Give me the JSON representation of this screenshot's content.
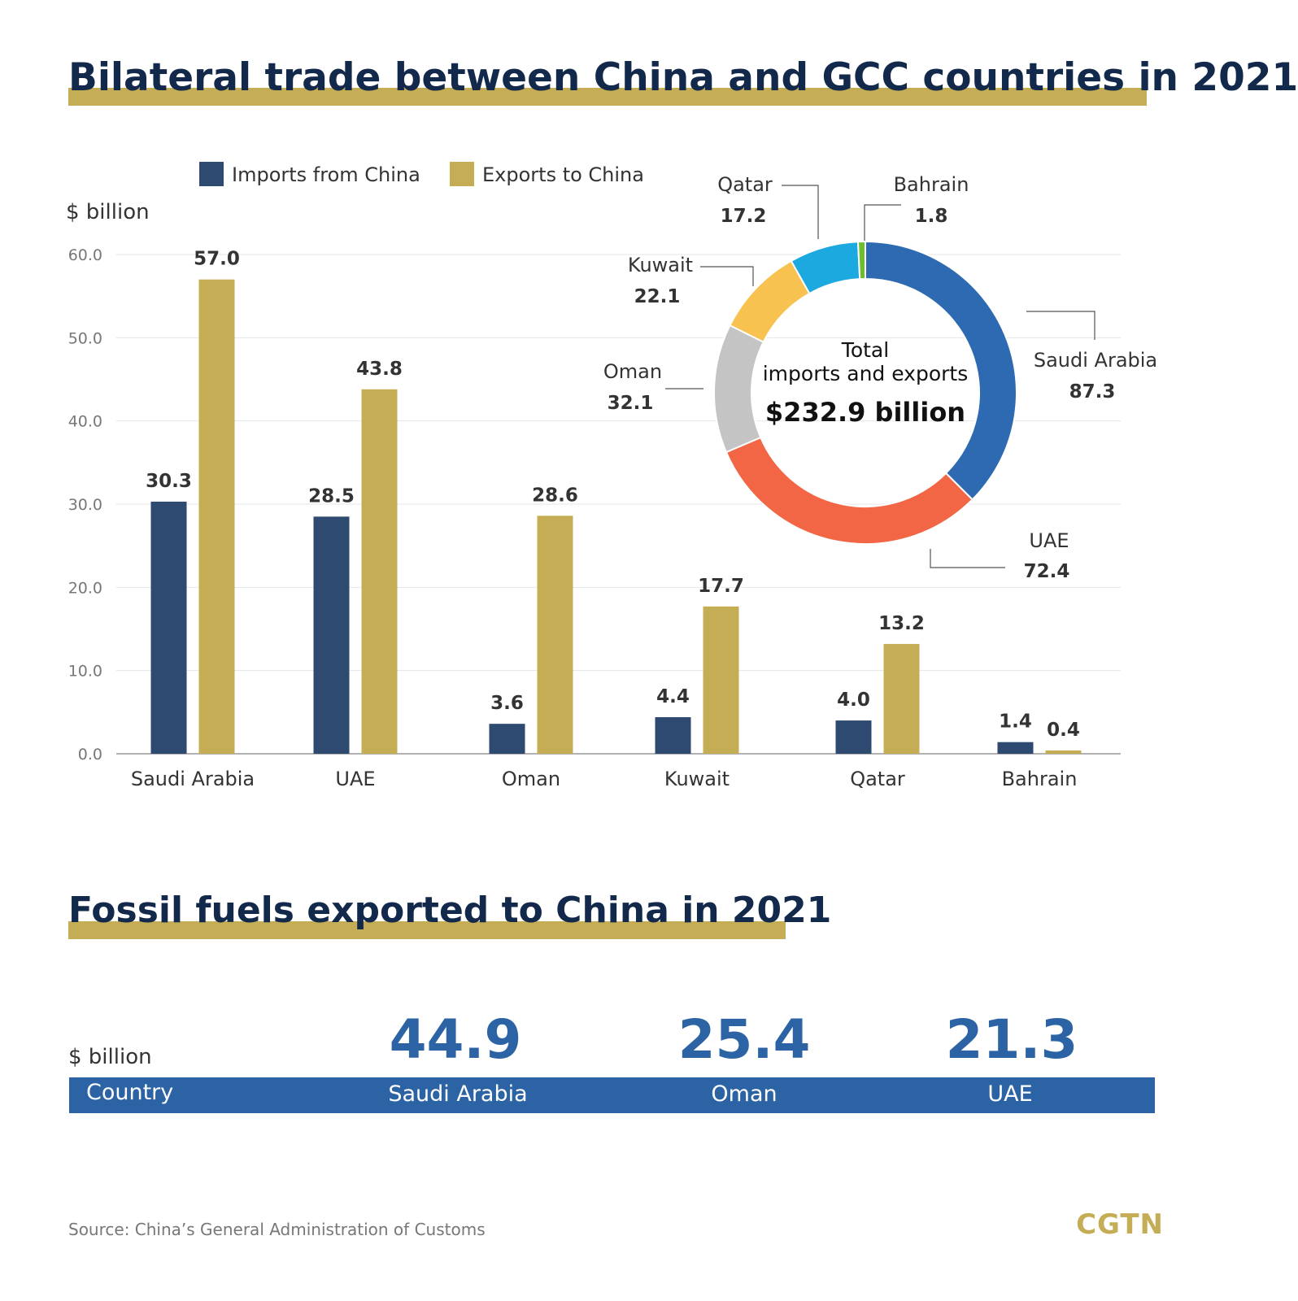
{
  "title": "Bilateral trade between China and GCC countries in 2021",
  "chart_data": [
    {
      "type": "bar",
      "ylabel": "$ billion",
      "ylim": [
        0,
        60
      ],
      "yticks": [
        "0.0",
        "10.0",
        "20.0",
        "30.0",
        "40.0",
        "50.0",
        "60.0"
      ],
      "grid": true,
      "legend_position": "top",
      "categories": [
        "Saudi Arabia",
        "UAE",
        "Oman",
        "Kuwait",
        "Qatar",
        "Bahrain"
      ],
      "series": [
        {
          "name": "Imports from China",
          "color": "#2e4a70",
          "values": [
            30.3,
            28.5,
            3.6,
            4.4,
            4.0,
            1.4
          ]
        },
        {
          "name": "Exports to China",
          "color": "#c4ad55",
          "values": [
            57.0,
            43.8,
            28.6,
            17.7,
            13.2,
            0.4
          ]
        }
      ]
    },
    {
      "type": "pie",
      "donut": true,
      "center_label": "Total imports and exports",
      "center_value": "$232.9 billion",
      "slices": [
        {
          "label": "Saudi Arabia",
          "value": 87.3,
          "color": "#2d6ab2"
        },
        {
          "label": "UAE",
          "value": 72.4,
          "color": "#f26545"
        },
        {
          "label": "Oman",
          "value": 32.1,
          "color": "#c4c4c4"
        },
        {
          "label": "Kuwait",
          "value": 22.1,
          "color": "#f7c24f"
        },
        {
          "label": "Qatar",
          "value": 17.2,
          "color": "#1ca9df"
        },
        {
          "label": "Bahrain",
          "value": 1.8,
          "color": "#6cbf2a"
        }
      ]
    }
  ],
  "fossil": {
    "title": "Fossil fuels exported to China in 2021",
    "unit": "$ billion",
    "header": "Country",
    "items": [
      {
        "country": "Saudi Arabia",
        "value": "44.9"
      },
      {
        "country": "Oman",
        "value": "25.4"
      },
      {
        "country": "UAE",
        "value": "21.3"
      }
    ]
  },
  "source": "Source: China’s General Administration of Customs",
  "logo": "CGTN",
  "colors": {
    "navy": "#13294b",
    "gold": "#c4ad55",
    "blue": "#2b63a4"
  }
}
